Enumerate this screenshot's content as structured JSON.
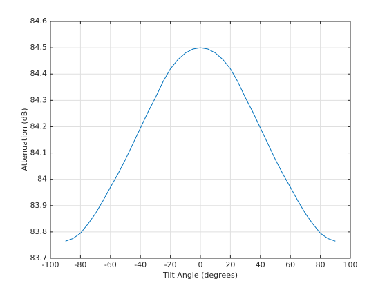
{
  "chart_data": {
    "type": "line",
    "xlabel": "Tilt Angle (degrees)",
    "ylabel": "Attenuation (dB)",
    "x": [
      -90,
      -85,
      -80,
      -75,
      -70,
      -65,
      -60,
      -55,
      -50,
      -45,
      -40,
      -35,
      -30,
      -25,
      -20,
      -15,
      -10,
      -5,
      0,
      5,
      10,
      15,
      20,
      25,
      30,
      35,
      40,
      45,
      50,
      55,
      60,
      65,
      70,
      75,
      80,
      85,
      90
    ],
    "values": [
      83.765,
      83.775,
      83.795,
      83.83,
      83.87,
      83.918,
      83.97,
      84.02,
      84.075,
      84.135,
      84.195,
      84.255,
      84.31,
      84.37,
      84.42,
      84.455,
      84.48,
      84.495,
      84.5,
      84.495,
      84.48,
      84.455,
      84.42,
      84.37,
      84.31,
      84.255,
      84.195,
      84.135,
      84.075,
      84.02,
      83.97,
      83.918,
      83.87,
      83.83,
      83.795,
      83.775,
      83.765
    ],
    "color": "#0072bd",
    "xlim": [
      -100,
      100
    ],
    "xticks": [
      -100,
      -80,
      -60,
      -40,
      -20,
      0,
      20,
      40,
      60,
      80,
      100
    ],
    "ylim": [
      83.7,
      84.6
    ],
    "yticks": [
      83.7,
      83.8,
      83.9,
      84,
      84.1,
      84.2,
      84.3,
      84.4,
      84.5,
      84.6
    ],
    "grid": true
  }
}
